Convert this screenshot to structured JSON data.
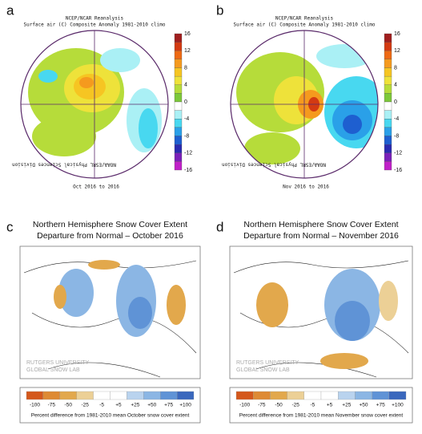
{
  "panels": [
    {
      "letter": "a",
      "header": [
        "NCEP/NCAR Reanalysis",
        "Surface air (C) Composite Anomaly 1981-2010 climo"
      ],
      "caption": "Oct 2016 to 2016",
      "credit": "NOAA/ESRL Physical Sciences Division",
      "colorbar": {
        "ticks": [
          "16",
          "12",
          "8",
          "4",
          "0",
          "-4",
          "-8",
          "-12",
          "-16"
        ],
        "colors": [
          "#a01e1e",
          "#d33a12",
          "#ee6a14",
          "#f59a1e",
          "#f6c522",
          "#eee23a",
          "#b6dc3a",
          "#7cc83a",
          "#ffffff",
          "#aaf0f5",
          "#48d8f0",
          "#2aa0e8",
          "#1e5fd0",
          "#2a2ab0",
          "#7a20b8",
          "#c020c8"
        ]
      }
    },
    {
      "letter": "b",
      "header": [
        "NCEP/NCAR Reanalysis",
        "Surface air (C) Composite Anomaly 1981-2010 climo"
      ],
      "caption": "Nov 2016 to 2016",
      "credit": "NOAA/ESRL Physical Sciences Division",
      "colorbar": {
        "ticks": [
          "16",
          "12",
          "8",
          "4",
          "0",
          "-4",
          "-8",
          "-12",
          "-16"
        ],
        "colors": [
          "#a01e1e",
          "#d33a12",
          "#ee6a14",
          "#f59a1e",
          "#f6c522",
          "#eee23a",
          "#b6dc3a",
          "#7cc83a",
          "#ffffff",
          "#aaf0f5",
          "#48d8f0",
          "#2aa0e8",
          "#1e5fd0",
          "#2a2ab0",
          "#7a20b8",
          "#c020c8"
        ]
      }
    },
    {
      "letter": "c",
      "title": [
        "Northern Hemisphere Snow Cover Extent",
        "Departure from Normal – October 2016"
      ],
      "watermark": [
        "RUTGERS UNIVERSITY",
        "GLOBAL SNOW LAB"
      ],
      "legend": {
        "labels": [
          "-100",
          "-75",
          "-50",
          "-25",
          "-5",
          "+5",
          "+25",
          "+50",
          "+75",
          "+100"
        ],
        "colors": [
          "#d4581c",
          "#de8a34",
          "#e2a84c",
          "#ecd096",
          "#ffffff",
          "#ffffff",
          "#b9d3ee",
          "#8bb6e4",
          "#5f93d6",
          "#3a68bd"
        ],
        "caption": "Percent difference from 1981-2010 mean October snow cover extent"
      }
    },
    {
      "letter": "d",
      "title": [
        "Northern Hemisphere Snow Cover Extent",
        "Departure from Normal – November 2016"
      ],
      "watermark": [
        "RUTGERS UNIVERSITY",
        "GLOBAL SNOW LAB"
      ],
      "legend": {
        "labels": [
          "-100",
          "-75",
          "-50",
          "-25",
          "-5",
          "+5",
          "+25",
          "+50",
          "+75",
          "+100"
        ],
        "colors": [
          "#d4581c",
          "#de8a34",
          "#e2a84c",
          "#ecd096",
          "#ffffff",
          "#ffffff",
          "#b9d3ee",
          "#8bb6e4",
          "#5f93d6",
          "#3a68bd"
        ],
        "caption": "Percent difference from 1981-2010 mean November snow cover extent"
      }
    }
  ]
}
